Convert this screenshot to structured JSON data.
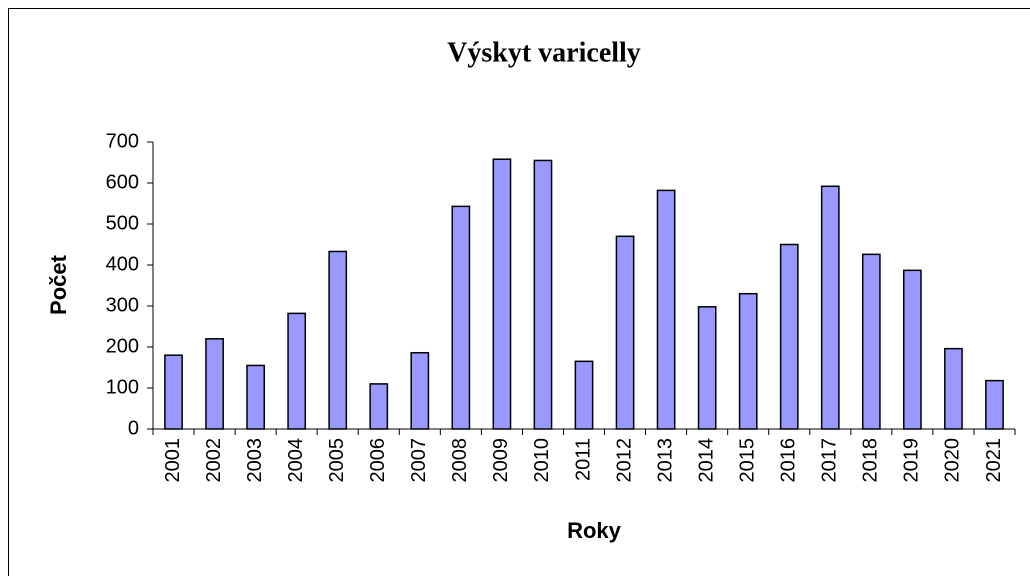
{
  "chart_data": {
    "type": "bar",
    "title": "Výskyt varicelly",
    "x_label": "Roky",
    "y_label": "Počet",
    "categories": [
      "2001",
      "2002",
      "2003",
      "2004",
      "2005",
      "2006",
      "2007",
      "2008",
      "2009",
      "2010",
      "2011",
      "2012",
      "2013",
      "2014",
      "2015",
      "2016",
      "2017",
      "2018",
      "2019",
      "2020",
      "2021"
    ],
    "values": [
      180,
      220,
      155,
      282,
      433,
      110,
      186,
      543,
      658,
      655,
      165,
      470,
      582,
      298,
      330,
      450,
      592,
      426,
      387,
      196,
      118
    ],
    "color": "#9999ff",
    "ylim": [
      0,
      700
    ],
    "yticks": [
      0,
      100,
      200,
      300,
      400,
      500,
      600,
      700
    ],
    "grid": false
  }
}
